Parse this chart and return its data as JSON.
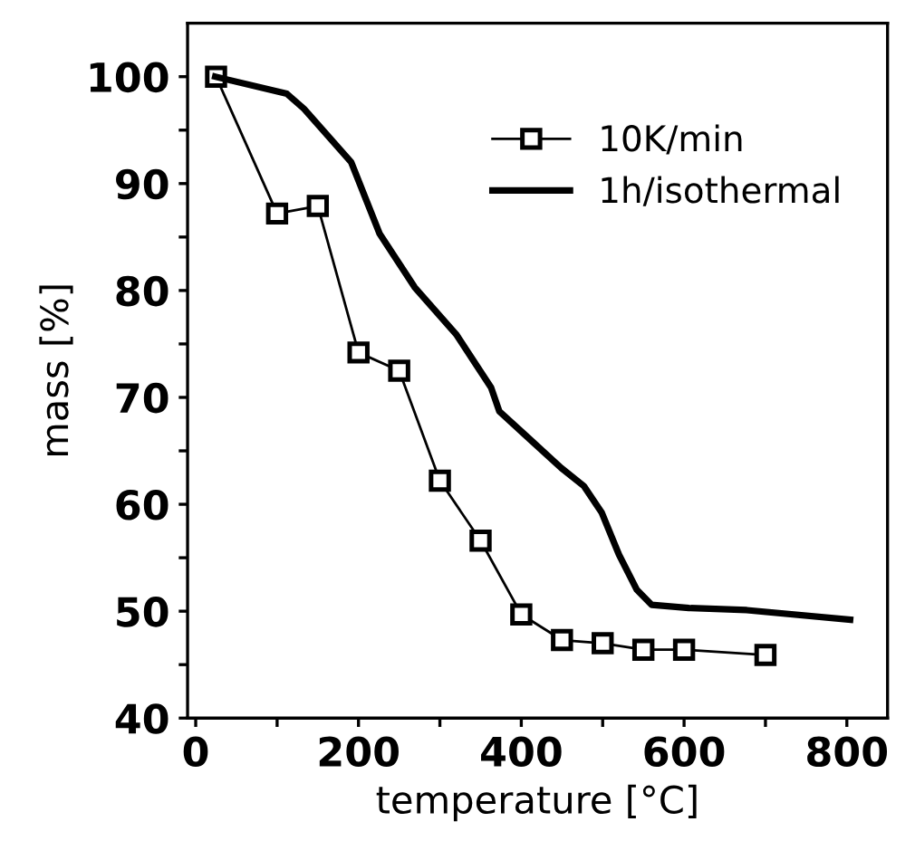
{
  "chart_data": {
    "type": "line",
    "xlabel": "temperature [°C]",
    "ylabel": "mass [%]",
    "xlim": [
      -10,
      850
    ],
    "ylim": [
      40,
      105
    ],
    "xticks": [
      0,
      {
        "value": 100,
        "label": null
      },
      200,
      {
        "value": 300,
        "label": null
      },
      400,
      {
        "value": 500,
        "label": null
      },
      600,
      {
        "value": 700,
        "label": null
      },
      800
    ],
    "yticks": [
      40,
      {
        "value": 45,
        "label": null
      },
      50,
      {
        "value": 55,
        "label": null
      },
      60,
      {
        "value": 65,
        "label": null
      },
      70,
      {
        "value": 75,
        "label": null
      },
      80,
      {
        "value": 85,
        "label": null
      },
      90,
      {
        "value": 95,
        "label": null
      },
      100
    ],
    "grid": false,
    "legend": "top right",
    "line_style": "solid",
    "series": [
      {
        "name": "10K/min",
        "color": "#000000",
        "marker": "square",
        "x": [
          25,
          100,
          150,
          200,
          250,
          300,
          350,
          400,
          450,
          500,
          550,
          600,
          700
        ],
        "values": [
          100,
          87.2,
          87.9,
          74.2,
          72.5,
          62.2,
          56.6,
          49.7,
          47.3,
          47.0,
          46.4,
          46.4,
          45.9
        ]
      },
      {
        "name": "1h/isothermal",
        "color": "#000000",
        "marker": "none",
        "x": [
          24,
          112,
          133,
          191,
          226,
          269,
          320,
          363,
          373,
          406,
          449,
          477,
          499,
          520,
          542,
          560,
          606,
          677,
          804
        ],
        "values": [
          100,
          98.4,
          97,
          92,
          85.3,
          80.3,
          75.9,
          70.9,
          68.7,
          66.4,
          63.4,
          61.7,
          59.2,
          55.3,
          52,
          50.6,
          50.3,
          50.1,
          49.2
        ]
      }
    ]
  }
}
